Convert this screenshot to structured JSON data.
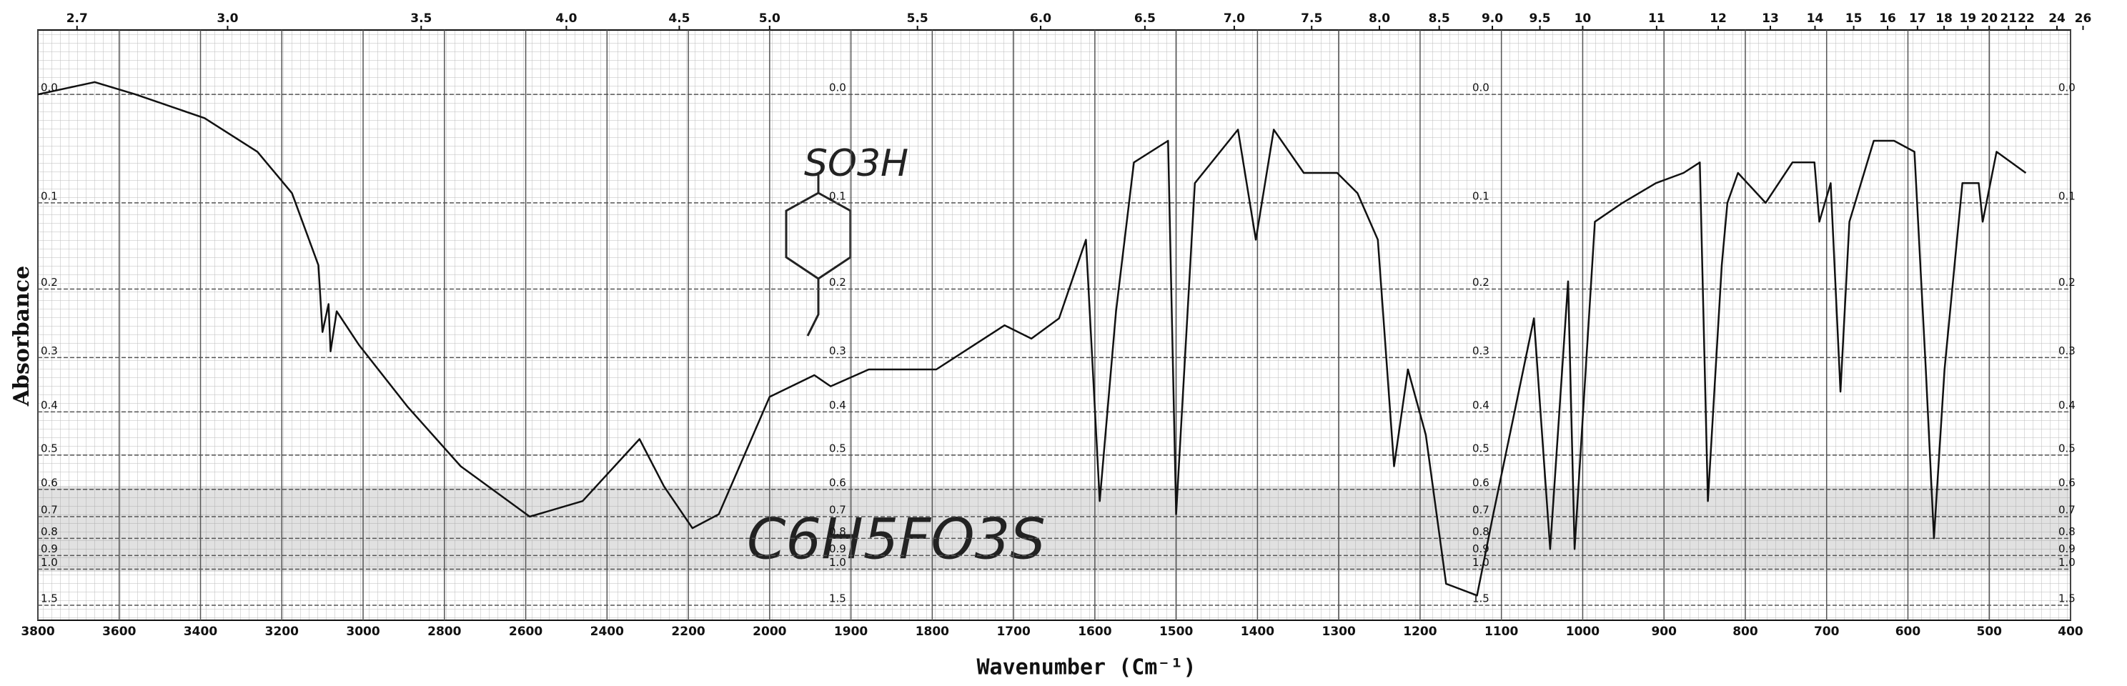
{
  "chart_data": {
    "type": "line",
    "y_label": "Absorbance",
    "x_label": "Wavenumber (Cm⁻¹)",
    "annotations": [
      "SO3H",
      "C6H5FO3S"
    ],
    "color": "#111111",
    "grid": true,
    "y_scale": "transmittance",
    "x": [
      3800,
      3660,
      3560,
      3390,
      3260,
      3175,
      3110,
      3100,
      3085,
      3080,
      3065,
      3010,
      2890,
      2760,
      2590,
      2460,
      2320,
      2260,
      2190,
      2125,
      2000,
      1945,
      1925,
      1878,
      1795,
      1711,
      1678,
      1644,
      1611,
      1594,
      1574,
      1552,
      1510,
      1500,
      1477,
      1424,
      1402,
      1380,
      1343,
      1302,
      1277,
      1252,
      1232,
      1215,
      1193,
      1168,
      1130,
      1110,
      1085,
      1060,
      1040,
      1018,
      1010,
      985,
      951,
      910,
      876,
      856,
      846,
      829,
      822,
      809,
      775,
      742,
      715,
      709,
      695,
      683,
      672,
      642,
      617,
      592,
      578,
      568,
      555,
      533,
      513,
      508,
      491,
      455
    ],
    "values": [
      0.0,
      -0.01,
      0.0,
      0.02,
      0.05,
      0.09,
      0.17,
      0.26,
      0.22,
      0.29,
      0.23,
      0.28,
      0.39,
      0.53,
      0.7,
      0.64,
      0.46,
      0.59,
      0.75,
      0.69,
      0.37,
      0.33,
      0.35,
      0.32,
      0.32,
      0.25,
      0.27,
      0.24,
      0.14,
      0.64,
      0.23,
      0.06,
      0.04,
      0.69,
      0.08,
      0.03,
      0.14,
      0.03,
      0.07,
      0.07,
      0.09,
      0.14,
      0.53,
      0.32,
      0.45,
      1.14,
      1.3,
      0.69,
      0.41,
      0.24,
      0.86,
      0.19,
      0.86,
      0.12,
      0.1,
      0.08,
      0.07,
      0.06,
      0.64,
      0.17,
      0.1,
      0.07,
      0.1,
      0.06,
      0.06,
      0.12,
      0.08,
      0.36,
      0.12,
      0.04,
      0.04,
      0.05,
      0.32,
      0.8,
      0.32,
      0.08,
      0.08,
      0.12,
      0.05,
      0.07
    ],
    "xlim": [
      3800,
      400
    ],
    "xticks": [
      3800,
      3600,
      3400,
      3200,
      3000,
      2800,
      2600,
      2400,
      2200,
      2000,
      1900,
      1800,
      1700,
      1600,
      1500,
      1400,
      1300,
      1200,
      1100,
      1000,
      900,
      800,
      700,
      600,
      500,
      400
    ],
    "ylim": [
      -0.05,
      2.5
    ],
    "yticks": [
      {
        "value": 0,
        "label": "0.0"
      },
      0.1,
      0.2,
      0.3,
      0.4,
      0.5,
      0.6,
      0.7,
      0.8,
      0.9,
      {
        "value": 1,
        "label": "1.0"
      },
      1.5
    ],
    "top_xticks": [
      2.7,
      {
        "value": 3,
        "label": "3.0"
      },
      3.5,
      {
        "value": 4,
        "label": "4.0"
      },
      4.5,
      {
        "value": 5,
        "label": "5.0"
      },
      5.5,
      {
        "value": 6,
        "label": "6.0"
      },
      6.5,
      {
        "value": 7,
        "label": "7.0"
      },
      7.5,
      {
        "value": 8,
        "label": "8.0"
      },
      8.5,
      {
        "value": 9,
        "label": "9.0"
      },
      9.5,
      10,
      11,
      12,
      13,
      14,
      15,
      16,
      17,
      18,
      19,
      20,
      21,
      22,
      24,
      26
    ]
  }
}
